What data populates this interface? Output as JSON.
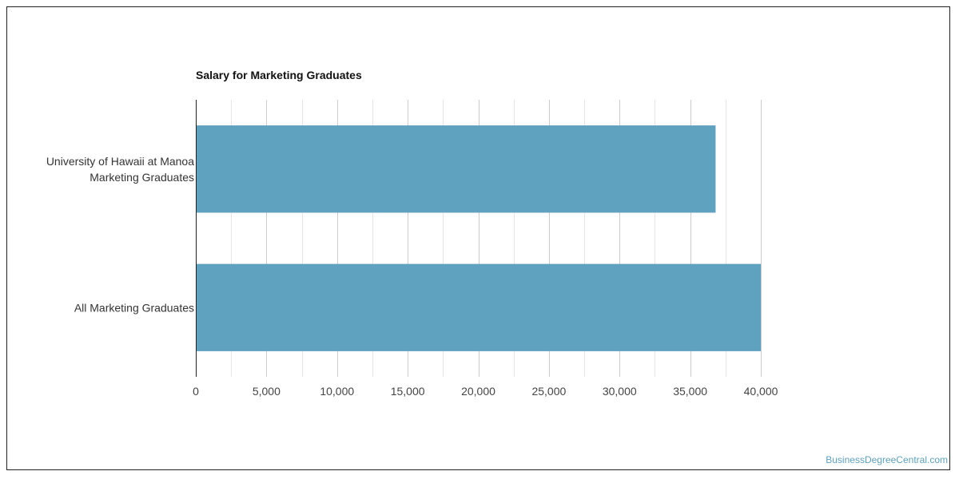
{
  "watermark": "BusinessDegreeCentral.com",
  "chart_data": {
    "type": "bar",
    "orientation": "horizontal",
    "title": "Salary for Marketing Graduates",
    "xlabel": "",
    "ylabel": "",
    "categories": [
      [
        "University of Hawaii at Manoa",
        "Marketing Graduates"
      ],
      [
        "All Marketing Graduates"
      ]
    ],
    "values": [
      36800,
      40000
    ],
    "xlim": [
      0,
      40000
    ],
    "xticks": [
      0,
      5000,
      10000,
      15000,
      20000,
      25000,
      30000,
      35000,
      40000
    ],
    "xtick_labels": [
      "0",
      "5,000",
      "10,000",
      "15,000",
      "20,000",
      "25,000",
      "30,000",
      "35,000",
      "40,000"
    ],
    "grid": true,
    "legend": "none",
    "bar_color": "#5ea2c0",
    "major_grid_color": "#cccccc",
    "minor_grid_color": "#e6e6e6",
    "axis_color": "#222222"
  }
}
